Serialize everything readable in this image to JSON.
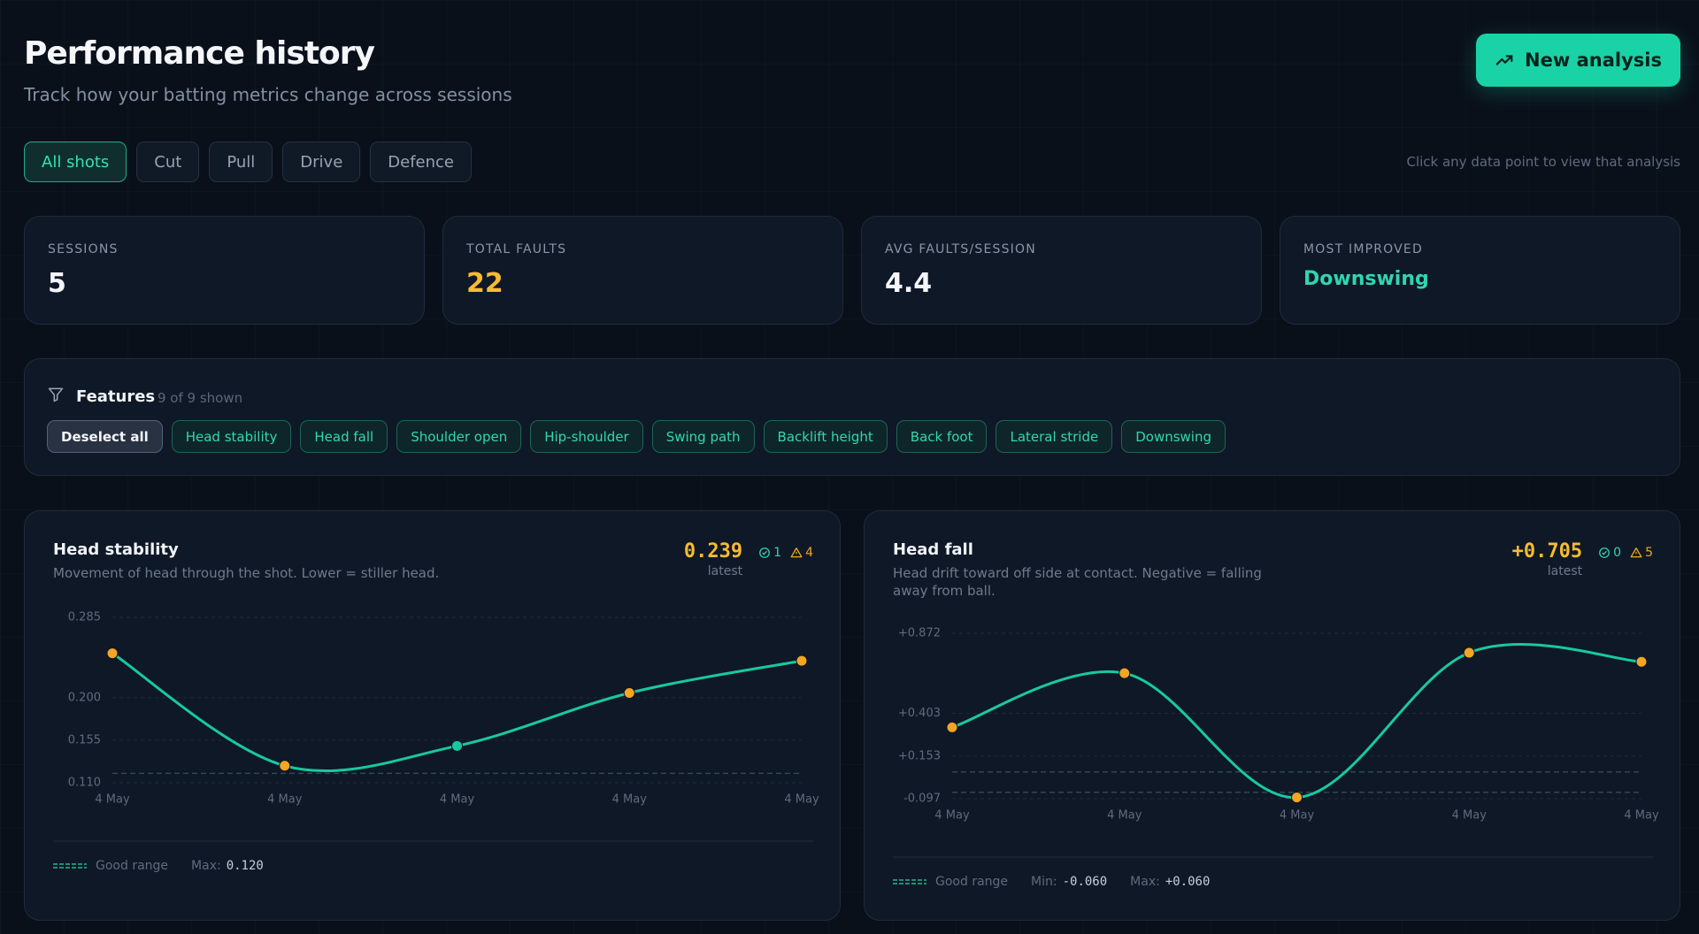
{
  "header": {
    "title": "Performance history",
    "subtitle": "Track how your batting metrics change across sessions",
    "button": "New analysis",
    "hint": "Click any data point to view that analysis"
  },
  "tabs": [
    "All shots",
    "Cut",
    "Pull",
    "Drive",
    "Defence"
  ],
  "stats": [
    {
      "label": "SESSIONS",
      "value": 5
    },
    {
      "label": "TOTAL FAULTS",
      "value": 22
    },
    {
      "label": "AVG FAULTS/SESSION",
      "value": 4.4
    },
    {
      "label": "MOST IMPROVED",
      "value": "Downswing"
    }
  ],
  "features": {
    "title": "Features",
    "count": "9 of 9 shown",
    "deselect": "Deselect all",
    "chips": [
      "Head stability",
      "Head fall",
      "Shoulder open",
      "Hip-shoulder",
      "Swing path",
      "Backlift height",
      "Back foot",
      "Lateral stride",
      "Downswing"
    ]
  },
  "charts": [
    {
      "type": "line",
      "title": "Head stability",
      "description": "Movement of head through the shot. Lower = stiller head.",
      "latest": 0.239,
      "latest_caption": "latest",
      "ok_count": 1,
      "warn_count": 4,
      "categories": [
        "4 May",
        "4 May",
        "4 May",
        "4 May",
        "4 May"
      ],
      "values": [
        0.247,
        0.128,
        0.149,
        0.205,
        0.239
      ],
      "color": "#18c9a0",
      "point_colors": [
        "#f5a524",
        "#f5a524",
        "#18c9a0",
        "#f5a524",
        "#f5a524"
      ],
      "ylim": [
        0.11,
        0.285
      ],
      "yticks": [
        {
          "value": 0.285,
          "label": "0.285"
        },
        {
          "value": 0.2,
          "label": "0.200"
        },
        {
          "value": 0.155,
          "label": "0.155"
        },
        {
          "value": 0.11,
          "label": "0.110"
        }
      ],
      "grid": true,
      "good_range": {
        "label": "Good range",
        "bounds": [
          {
            "name": "Max:",
            "value": 0.12,
            "label": "0.120"
          }
        ]
      }
    },
    {
      "type": "line",
      "title": "Head fall",
      "description": "Head drift toward off side at contact. Negative = falling away from ball.",
      "latest": {
        "value": 0.705,
        "label": "+0.705"
      },
      "latest_caption": "latest",
      "ok_count": 0,
      "warn_count": 5,
      "categories": [
        "4 May",
        "4 May",
        "4 May",
        "4 May",
        "4 May"
      ],
      "values": [
        0.321,
        0.638,
        -0.09,
        0.758,
        0.705
      ],
      "color": "#18c9a0",
      "point_colors": [
        "#f5a524",
        "#f5a524",
        "#f5a524",
        "#f5a524",
        "#f5a524"
      ],
      "ylim": [
        -0.097,
        0.872
      ],
      "yticks": [
        {
          "value": 0.872,
          "label": "+0.872"
        },
        {
          "value": 0.403,
          "label": "+0.403"
        },
        {
          "value": 0.153,
          "label": "+0.153"
        },
        {
          "value": -0.097,
          "label": "-0.097"
        }
      ],
      "grid": true,
      "good_range": {
        "label": "Good range",
        "bounds": [
          {
            "name": "Min:",
            "value": -0.06,
            "label": "-0.060"
          },
          {
            "name": "Max:",
            "value": 0.06,
            "label": "+0.060"
          }
        ]
      }
    }
  ]
}
